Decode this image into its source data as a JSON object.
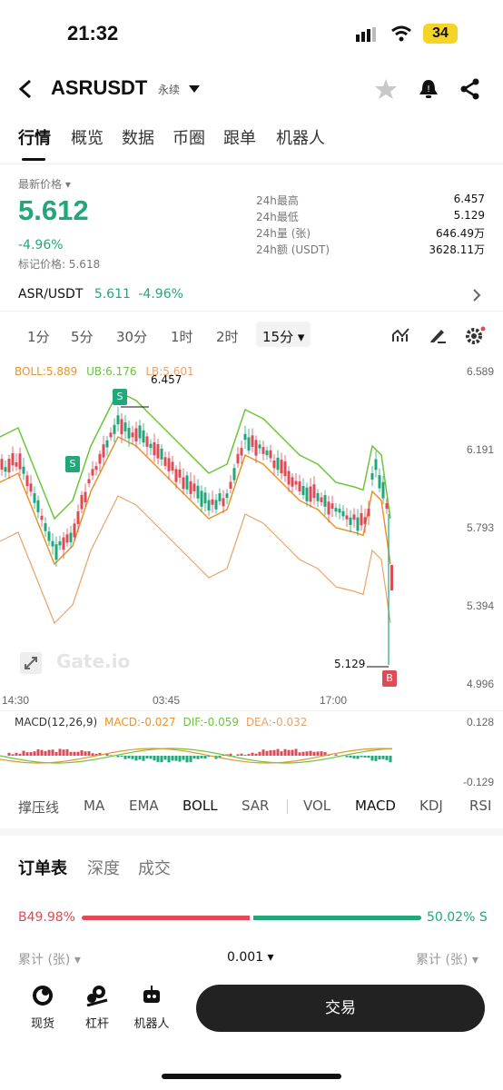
{
  "status": {
    "time": "21:32",
    "battery": "34"
  },
  "header": {
    "title": "ASRUSDT",
    "badge": "永续"
  },
  "tabs": [
    "行情",
    "概览",
    "数据",
    "币圈",
    "跟单",
    "机器人"
  ],
  "price": {
    "label": "最新价格",
    "last": "5.612",
    "change": "-4.96%",
    "mark": "标记价格: 5.618"
  },
  "stats": [
    {
      "label": "24h最高",
      "value": "6.457"
    },
    {
      "label": "24h最低",
      "value": "5.129"
    },
    {
      "label": "24h量 (张)",
      "value": "646.49万"
    },
    {
      "label": "24h额 (USDT)",
      "value": "3628.11万"
    }
  ],
  "pair": {
    "name": "ASR/USDT",
    "price": "5.611",
    "change": "-4.96%"
  },
  "timeframes": [
    "1分",
    "5分",
    "30分",
    "1时",
    "2时",
    "15分"
  ],
  "boll": {
    "boll": "BOLL:5.889",
    "ub": "UB:6.176",
    "lb": "LB:5.601"
  },
  "y_axis": [
    "6.589",
    "6.191",
    "5.793",
    "5.394",
    "4.996"
  ],
  "x_axis": [
    "14:30",
    "03:45",
    "17:00"
  ],
  "hi_label": "6.457",
  "lo_label": "5.129",
  "markers": {
    "sell": "S",
    "buy": "B"
  },
  "watermark": "Gate.io",
  "macd": {
    "label": "MACD(12,26,9)",
    "macd": "MACD:-0.027",
    "dif": "DIF:-0.059",
    "dea": "DEA:-0.032",
    "top": "0.128",
    "bottom": "-0.129"
  },
  "indicators": [
    "撑压线",
    "MA",
    "EMA",
    "BOLL",
    "SAR",
    "VOL",
    "MACD",
    "KDJ",
    "RSI"
  ],
  "orderbook": {
    "tabs": [
      "订单表",
      "深度",
      "成交"
    ],
    "buy_pct": "B49.98%",
    "sell_pct": "50.02% S",
    "buy_ratio": 0.4998,
    "col_left": "累计 (张)",
    "precision": "0.001",
    "col_right": "累计 (张)"
  },
  "bottom_nav": [
    {
      "label": "现货",
      "icon": "spot-icon"
    },
    {
      "label": "杠杆",
      "icon": "leverage-icon"
    },
    {
      "label": "机器人",
      "icon": "robot-icon"
    }
  ],
  "trade_button": "交易",
  "colors": {
    "up": "#21a77a",
    "down": "#e04a57",
    "boll_mid": "#e8932b",
    "boll_band": "#6cc43a"
  }
}
